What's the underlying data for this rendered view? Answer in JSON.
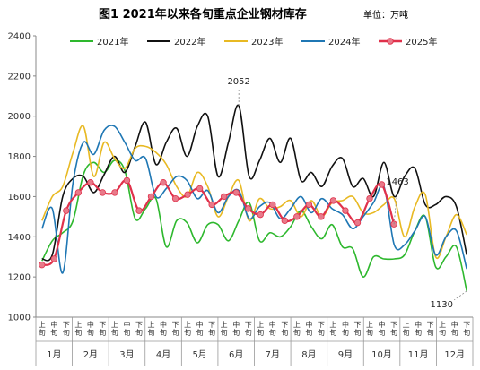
{
  "chart_data": {
    "type": "line",
    "title": "图1  2021年以来各旬重点企业钢材库存",
    "unit_label": "单位：万吨",
    "ylim": [
      1000,
      2400
    ],
    "yticks": [
      1000,
      1200,
      1400,
      1600,
      1800,
      2000,
      2200,
      2400
    ],
    "grid": false,
    "legend_position": "top",
    "months": [
      "1月",
      "2月",
      "3月",
      "4月",
      "5月",
      "6月",
      "7月",
      "8月",
      "9月",
      "10月",
      "11月",
      "12月"
    ],
    "periods": [
      "上旬",
      "中旬",
      "下旬"
    ],
    "series": [
      {
        "name": "2021年",
        "color": "#2eb82e",
        "values": [
          1280,
          1380,
          1420,
          1480,
          1710,
          1770,
          1720,
          1780,
          1730,
          1490,
          1540,
          1590,
          1350,
          1480,
          1470,
          1370,
          1460,
          1460,
          1380,
          1480,
          1570,
          1380,
          1420,
          1400,
          1450,
          1530,
          1450,
          1390,
          1460,
          1350,
          1340,
          1200,
          1300,
          1290,
          1290,
          1310,
          1430,
          1500,
          1250,
          1300,
          1350,
          1130
        ]
      },
      {
        "name": "2022年",
        "color": "#111111",
        "values": [
          1290,
          1310,
          1600,
          1690,
          1700,
          1620,
          1710,
          1800,
          1720,
          1850,
          1970,
          1760,
          1870,
          1940,
          1800,
          1950,
          2000,
          1700,
          1870,
          2052,
          1700,
          1780,
          1890,
          1770,
          1890,
          1680,
          1720,
          1650,
          1750,
          1790,
          1650,
          1690,
          1600,
          1770,
          1600,
          1700,
          1740,
          1560,
          1560,
          1600,
          1550,
          1310
        ]
      },
      {
        "name": "2023年",
        "color": "#e8b923",
        "values": [
          1480,
          1600,
          1650,
          1820,
          1950,
          1700,
          1870,
          1790,
          1740,
          1840,
          1850,
          1820,
          1760,
          1650,
          1600,
          1720,
          1650,
          1500,
          1600,
          1680,
          1480,
          1590,
          1540,
          1550,
          1580,
          1500,
          1580,
          1500,
          1570,
          1580,
          1600,
          1520,
          1520,
          1560,
          1590,
          1400,
          1550,
          1610,
          1300,
          1400,
          1510,
          1410
        ]
      },
      {
        "name": "2024年",
        "color": "#1f77b4",
        "values": [
          1440,
          1540,
          1220,
          1670,
          1870,
          1810,
          1930,
          1950,
          1870,
          1780,
          1790,
          1600,
          1640,
          1700,
          1680,
          1590,
          1630,
          1520,
          1600,
          1630,
          1490,
          1550,
          1570,
          1490,
          1540,
          1600,
          1520,
          1590,
          1540,
          1510,
          1440,
          1500,
          1570,
          1650,
          1360,
          1360,
          1430,
          1500,
          1310,
          1400,
          1430,
          1240
        ]
      },
      {
        "name": "2025年",
        "color": "#e0314b",
        "marker": true,
        "values": [
          1260,
          1290,
          1530,
          1620,
          1670,
          1620,
          1620,
          1680,
          1530,
          1600,
          1670,
          1590,
          1610,
          1640,
          1560,
          1600,
          1620,
          1540,
          1510,
          1560,
          1480,
          1500,
          1560,
          1500,
          1580,
          1530,
          1470,
          1590,
          1660,
          1463
        ]
      }
    ],
    "annotations": [
      {
        "text": "2052",
        "series": "2022年",
        "index": 19
      },
      {
        "text": "1463",
        "series": "2025年",
        "index": 29
      },
      {
        "text": "1130",
        "series": "2021年",
        "index": 41
      }
    ]
  }
}
